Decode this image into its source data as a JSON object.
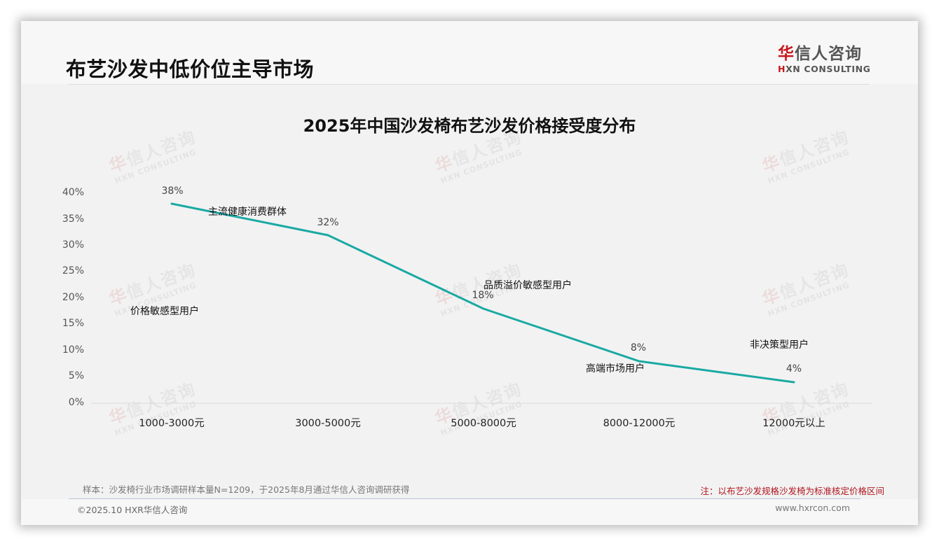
{
  "page": {
    "title": "布艺沙发中低价位主导市场",
    "logo": {
      "cn_first": "华",
      "cn_rest": "信人咨询",
      "en_first": "H",
      "en_rest": "XN CONSULTING"
    },
    "watermark": {
      "cn_first": "华",
      "cn_rest": "信人咨询",
      "en": "HXN CONSULTING"
    },
    "sample_note": "样本：沙发椅行业市场调研样本量N=1209，于2025年8月通过华信人咨询调研获得",
    "red_note": "注：以布艺沙发规格沙发椅为标准核定价格区间",
    "copyright": "©2025.10 HXR华信人咨询",
    "website": "www.hxrcon.com"
  },
  "colors": {
    "line": "#1aa9a3",
    "brand_red": "#c8161d",
    "note_red": "#b0161f",
    "axis": "#d9d9d9"
  },
  "chart_data": {
    "type": "line",
    "title": "2025年中国沙发椅布艺沙发价格接受度分布",
    "categories": [
      "1000-3000元",
      "3000-5000元",
      "5000-8000元",
      "8000-12000元",
      "12000元以上"
    ],
    "values": [
      38,
      32,
      18,
      8,
      4
    ],
    "value_labels": [
      "38%",
      "32%",
      "18%",
      "8%",
      "4%"
    ],
    "unit": "%",
    "xlabel": "",
    "ylabel": "",
    "ylim": [
      0,
      40
    ],
    "yticks": [
      "0%",
      "5%",
      "10%",
      "15%",
      "20%",
      "25%",
      "30%",
      "35%",
      "40%"
    ],
    "grid": false,
    "legend": null,
    "annotations": [
      "价格敏感型用户",
      "主流健康消费群体",
      "品质溢价敏感型用户",
      "高端市场用户",
      "非决策型用户"
    ]
  }
}
